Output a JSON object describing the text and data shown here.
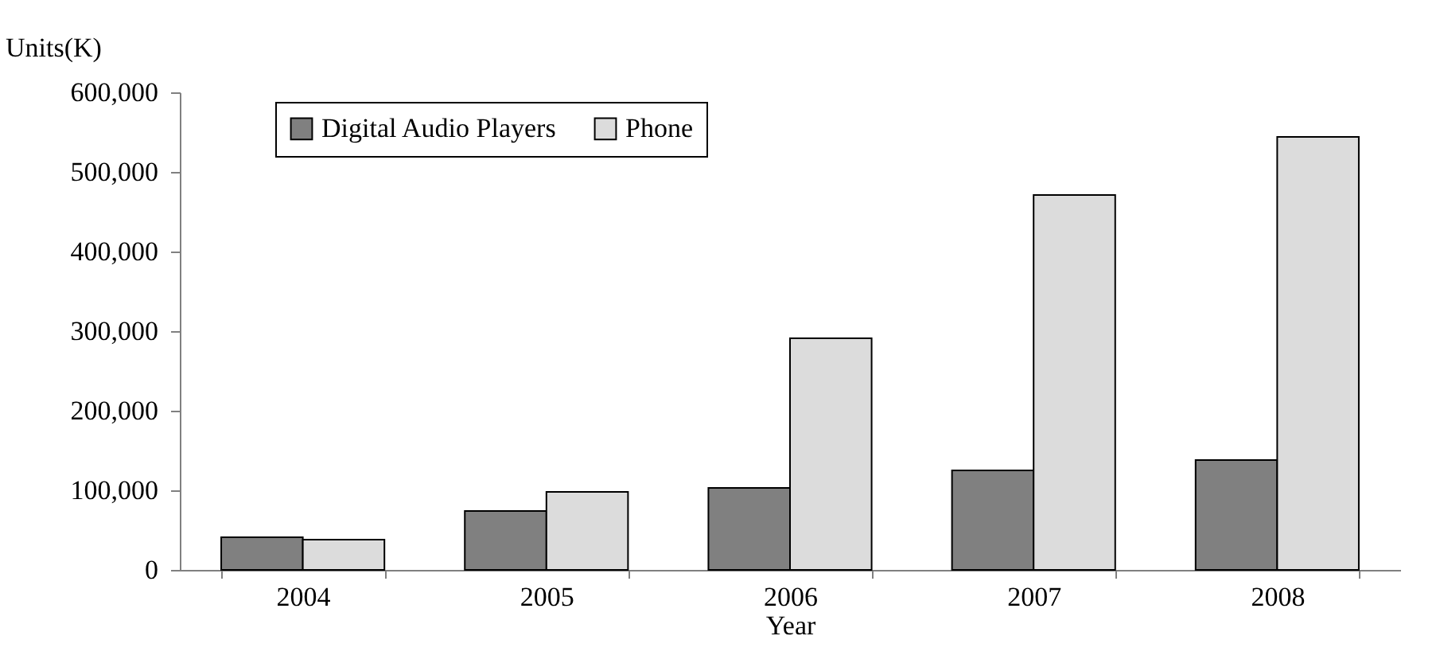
{
  "chart_data": {
    "type": "bar",
    "xlabel": "Year",
    "ylabel": "Units(K)",
    "categories": [
      "2004",
      "2005",
      "2006",
      "2007",
      "2008"
    ],
    "series": [
      {
        "name": "Digital Audio Players",
        "color": "#808080",
        "values": [
          41000,
          74000,
          103000,
          125000,
          138000
        ]
      },
      {
        "name": "Phone",
        "color": "#dcdcdc",
        "values": [
          38000,
          98000,
          291000,
          471000,
          544000
        ]
      }
    ],
    "ylim": [
      0,
      600000
    ],
    "yticks": [
      {
        "value": 0,
        "label": "0"
      },
      {
        "value": 100000,
        "label": "100,000"
      },
      {
        "value": 200000,
        "label": "200,000"
      },
      {
        "value": 300000,
        "label": "300,000"
      },
      {
        "value": 400000,
        "label": "400,000"
      },
      {
        "value": 500000,
        "label": "500,000"
      },
      {
        "value": 600000,
        "label": "600,000"
      }
    ],
    "grid": false,
    "legend": "top left"
  }
}
